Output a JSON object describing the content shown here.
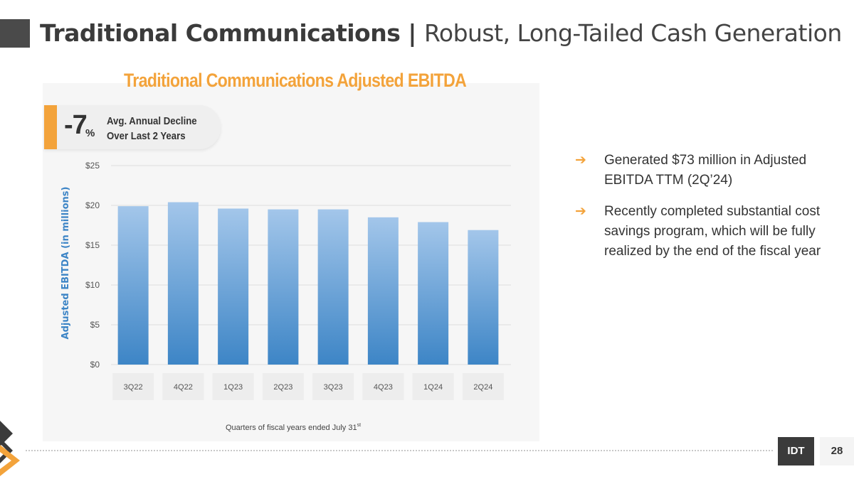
{
  "header": {
    "title_bold": "Traditional Communications",
    "separator": "|",
    "title_light": "Robust, Long-Tailed Cash Generation"
  },
  "kpi": {
    "value": "-7",
    "unit": "%",
    "label_line1": "Avg. Annual Decline",
    "label_line2": "Over Last 2 Years"
  },
  "bullets": [
    "Generated $73 million in Adjusted EBITDA TTM (2Q’24)",
    "Recently completed substantial cost savings program, which will be fully realized by the end of the fiscal year"
  ],
  "bullet_icon": "right-arrow-icon",
  "footer": {
    "brand": "IDT",
    "page": "28"
  },
  "colors": {
    "accent": "#f3a33b",
    "bar_top": "#a3c6ea",
    "bar_bottom": "#3d85c6",
    "ylabel": "#3d85c6",
    "dark": "#3b3b3b"
  },
  "chart_data": {
    "type": "bar",
    "title": "Traditional Communications Adjusted EBITDA",
    "categories": [
      "3Q22",
      "4Q22",
      "1Q23",
      "2Q23",
      "3Q23",
      "4Q23",
      "1Q24",
      "2Q24"
    ],
    "values": [
      19.9,
      20.4,
      19.6,
      19.5,
      19.5,
      18.5,
      17.9,
      16.9
    ],
    "ylabel": "Adjusted EBITDA (in millions)",
    "xlabel": "Quarters of fiscal years ended July 31",
    "xlabel_superscript": "st",
    "ylim": [
      0,
      25
    ],
    "yticks": [
      "$0",
      "$5",
      "$10",
      "$15",
      "$20",
      "$25"
    ],
    "grid": true
  }
}
